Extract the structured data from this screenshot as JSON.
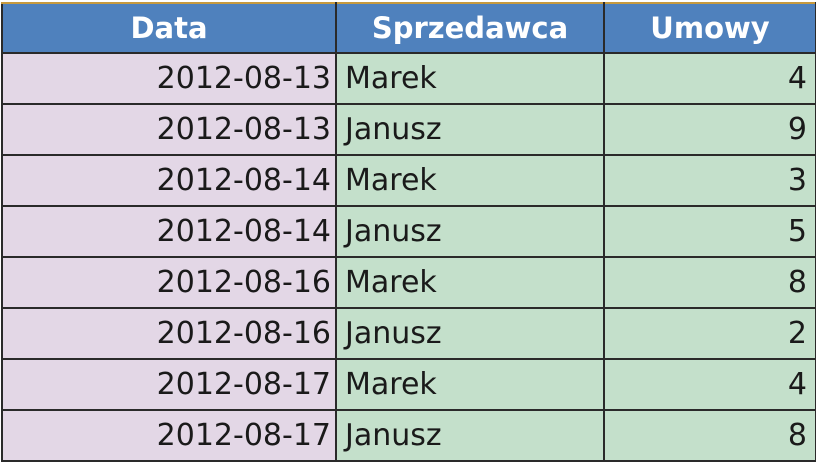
{
  "headers": {
    "date": "Data",
    "seller": "Sprzedawca",
    "deals": "Umowy"
  },
  "rows": [
    {
      "date": "2012-08-13",
      "seller": "Marek",
      "deals": "4"
    },
    {
      "date": "2012-08-13",
      "seller": "Janusz",
      "deals": "9"
    },
    {
      "date": "2012-08-14",
      "seller": "Marek",
      "deals": "3"
    },
    {
      "date": "2012-08-14",
      "seller": "Janusz",
      "deals": "5"
    },
    {
      "date": "2012-08-16",
      "seller": "Marek",
      "deals": "8"
    },
    {
      "date": "2012-08-16",
      "seller": "Janusz",
      "deals": "2"
    },
    {
      "date": "2012-08-17",
      "seller": "Marek",
      "deals": "4"
    },
    {
      "date": "2012-08-17",
      "seller": "Janusz",
      "deals": "8"
    }
  ],
  "colors": {
    "header_bg": "#4f81bd",
    "header_text": "#ffffff",
    "date_column_bg": "#e3d7e6",
    "data_columns_bg": "#c4e0cb",
    "grid_lines": "#2a2a2a"
  }
}
